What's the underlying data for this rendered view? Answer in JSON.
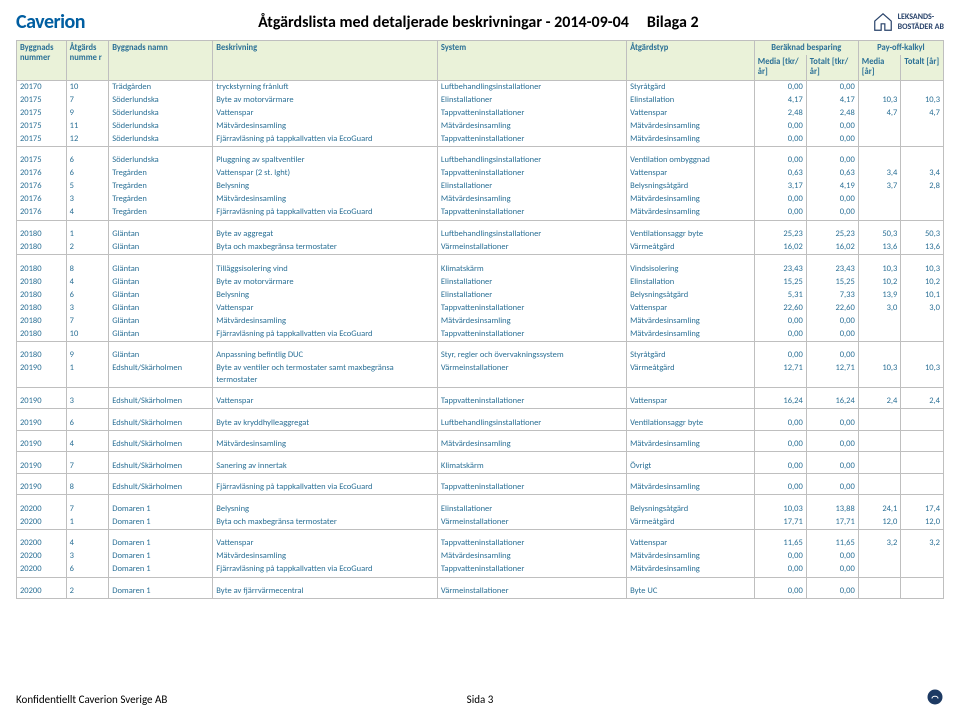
{
  "header": {
    "brand": "Caverion",
    "title": "Åtgärdslista med detaljerade beskrivningar - 2014-09-04",
    "appendix": "Bilaga 2",
    "right_logo_top": "LEKSANDS-",
    "right_logo_bot": "BOSTÄDER AB"
  },
  "columns": {
    "byggnr": "Byggnads nummer",
    "atgnr": "Åtgärds numme r",
    "namn": "Byggnads namn",
    "beskr": "Beskrivning",
    "sys": "System",
    "typ": "Åtgärdstyp",
    "grp_besp": "Beräknad besparing",
    "grp_pay": "Pay-off-kalkyl",
    "med1": "Media [tkr/år]",
    "tot1": "Totalt [tkr/år]",
    "med2": "Media [år]",
    "tot2": "Totalt [år]"
  },
  "groups": [
    {
      "rows": [
        [
          "20170",
          "10",
          "Trädgården",
          "tryckstyrning frånluft",
          "Luftbehandlingsinstallationer",
          "Styråtgärd",
          "0,00",
          "0,00",
          "",
          ""
        ],
        [
          "20175",
          "7",
          "Söderlundska",
          "Byte av motorvärmare",
          "Elinstallationer",
          "Elinstallation",
          "4,17",
          "4,17",
          "10,3",
          "10,3"
        ],
        [
          "20175",
          "9",
          "Söderlundska",
          "Vattenspar",
          "Tappvatteninstallationer",
          "Vattenspar",
          "2,48",
          "2,48",
          "4,7",
          "4,7"
        ],
        [
          "20175",
          "11",
          "Söderlundska",
          "Mätvärdesinsamling",
          "Mätvärdesinsamling",
          "Mätvärdesinsamling",
          "0,00",
          "0,00",
          "",
          ""
        ],
        [
          "20175",
          "12",
          "Söderlundska",
          "Fjärravläsning på tappkallvatten via EcoGuard",
          "Tappvatteninstallationer",
          "Mätvärdesinsamling",
          "0,00",
          "0,00",
          "",
          ""
        ]
      ]
    },
    {
      "rows": [
        [
          "20175",
          "6",
          "Söderlundska",
          "Pluggning av spaltventiler",
          "Luftbehandlingsinstallationer",
          "Ventilation ombyggnad",
          "0,00",
          "0,00",
          "",
          ""
        ],
        [
          "20176",
          "6",
          "Tregården",
          "Vattenspar (2 st. lght)",
          "Tappvatteninstallationer",
          "Vattenspar",
          "0,63",
          "0,63",
          "3,4",
          "3,4"
        ],
        [
          "20176",
          "5",
          "Tregården",
          "Belysning",
          "Elinstallationer",
          "Belysningsåtgärd",
          "3,17",
          "4,19",
          "3,7",
          "2,8"
        ],
        [
          "20176",
          "3",
          "Tregården",
          "Mätvärdesinsamling",
          "Mätvärdesinsamling",
          "Mätvärdesinsamling",
          "0,00",
          "0,00",
          "",
          ""
        ],
        [
          "20176",
          "4",
          "Tregården",
          "Fjärravläsning på tappkallvatten via EcoGuard",
          "Tappvatteninstallationer",
          "Mätvärdesinsamling",
          "0,00",
          "0,00",
          "",
          ""
        ]
      ]
    },
    {
      "rows": [
        [
          "20180",
          "1",
          "Gläntan",
          "Byte av aggregat",
          "Luftbehandlingsinstallationer",
          "Ventilationsaggr byte",
          "25,23",
          "25,23",
          "50,3",
          "50,3"
        ],
        [
          "20180",
          "2",
          "Gläntan",
          "Byta och maxbegränsa termostater",
          "Värmeinstallationer",
          "Värmeåtgärd",
          "16,02",
          "16,02",
          "13,6",
          "13,6"
        ]
      ]
    },
    {
      "rows": [
        [
          "20180",
          "8",
          "Gläntan",
          "Tilläggsisolering vind",
          "Klimatskärm",
          "Vindsisolering",
          "23,43",
          "23,43",
          "10,3",
          "10,3"
        ],
        [
          "20180",
          "4",
          "Gläntan",
          "Byte av motorvärmare",
          "Elinstallationer",
          "Elinstallation",
          "15,25",
          "15,25",
          "10,2",
          "10,2"
        ],
        [
          "20180",
          "6",
          "Gläntan",
          "Belysning",
          "Elinstallationer",
          "Belysningsåtgärd",
          "5,31",
          "7,33",
          "13,9",
          "10,1"
        ],
        [
          "20180",
          "3",
          "Gläntan",
          "Vattenspar",
          "Tappvatteninstallationer",
          "Vattenspar",
          "22,60",
          "22,60",
          "3,0",
          "3,0"
        ],
        [
          "20180",
          "7",
          "Gläntan",
          "Mätvärdesinsamling",
          "Mätvärdesinsamling",
          "Mätvärdesinsamling",
          "0,00",
          "0,00",
          "",
          ""
        ],
        [
          "20180",
          "10",
          "Gläntan",
          "Fjärravläsning på tappkallvatten via EcoGuard",
          "Tappvatteninstallationer",
          "Mätvärdesinsamling",
          "0,00",
          "0,00",
          "",
          ""
        ]
      ]
    },
    {
      "rows": [
        [
          "20180",
          "9",
          "Gläntan",
          "Anpassning befintlig DUC",
          "Styr, regler och övervakningssystem",
          "Styråtgärd",
          "0,00",
          "0,00",
          "",
          ""
        ],
        [
          "20190",
          "1",
          "Edshult/Skärholmen",
          "Byte av ventiler och termostater samt maxbegränsa termostater",
          "Värmeinstallationer",
          "Värmeåtgärd",
          "12,71",
          "12,71",
          "10,3",
          "10,3"
        ]
      ]
    },
    {
      "rows": [
        [
          "20190",
          "3",
          "Edshult/Skärholmen",
          "Vattenspar",
          "Tappvatteninstallationer",
          "Vattenspar",
          "16,24",
          "16,24",
          "2,4",
          "2,4"
        ]
      ]
    },
    {
      "rows": [
        [
          "20190",
          "6",
          "Edshult/Skärholmen",
          "Byte av kryddhylleaggregat",
          "Luftbehandlingsinstallationer",
          "Ventilationsaggr byte",
          "0,00",
          "0,00",
          "",
          ""
        ]
      ]
    },
    {
      "rows": [
        [
          "20190",
          "4",
          "Edshult/Skärholmen",
          "Mätvärdesinsamling",
          "Mätvärdesinsamling",
          "Mätvärdesinsamling",
          "0,00",
          "0,00",
          "",
          ""
        ]
      ]
    },
    {
      "rows": [
        [
          "20190",
          "7",
          "Edshult/Skärholmen",
          "Sanering av innertak",
          "Klimatskärm",
          "Övrigt",
          "0,00",
          "0,00",
          "",
          ""
        ]
      ]
    },
    {
      "rows": [
        [
          "20190",
          "8",
          "Edshult/Skärholmen",
          "Fjärravläsning på tappkallvatten via EcoGuard",
          "Tappvatteninstallationer",
          "Mätvärdesinsamling",
          "0,00",
          "0,00",
          "",
          ""
        ]
      ]
    },
    {
      "rows": [
        [
          "20200",
          "7",
          "Domaren 1",
          "Belysning",
          "Elinstallationer",
          "Belysningsåtgärd",
          "10,03",
          "13,88",
          "24,1",
          "17,4"
        ],
        [
          "20200",
          "1",
          "Domaren 1",
          "Byta och maxbegränsa termostater",
          "Värmeinstallationer",
          "Värmeåtgärd",
          "17,71",
          "17,71",
          "12,0",
          "12,0"
        ]
      ]
    },
    {
      "rows": [
        [
          "20200",
          "4",
          "Domaren 1",
          "Vattenspar",
          "Tappvatteninstallationer",
          "Vattenspar",
          "11,65",
          "11,65",
          "3,2",
          "3,2"
        ],
        [
          "20200",
          "3",
          "Domaren 1",
          "Mätvärdesinsamling",
          "Mätvärdesinsamling",
          "Mätvärdesinsamling",
          "0,00",
          "0,00",
          "",
          ""
        ],
        [
          "20200",
          "6",
          "Domaren 1",
          "Fjärravläsning på tappkallvatten via EcoGuard",
          "Tappvatteninstallationer",
          "Mätvärdesinsamling",
          "0,00",
          "0,00",
          "",
          ""
        ]
      ]
    },
    {
      "rows": [
        [
          "20200",
          "2",
          "Domaren 1",
          "Byte av fjärrvärmecentral",
          "Värmeinstallationer",
          "Byte UC",
          "0,00",
          "0,00",
          "",
          ""
        ]
      ]
    }
  ],
  "footer": {
    "conf": "Konfidentiellt Caverion Sverige AB",
    "page": "Sida 3"
  }
}
